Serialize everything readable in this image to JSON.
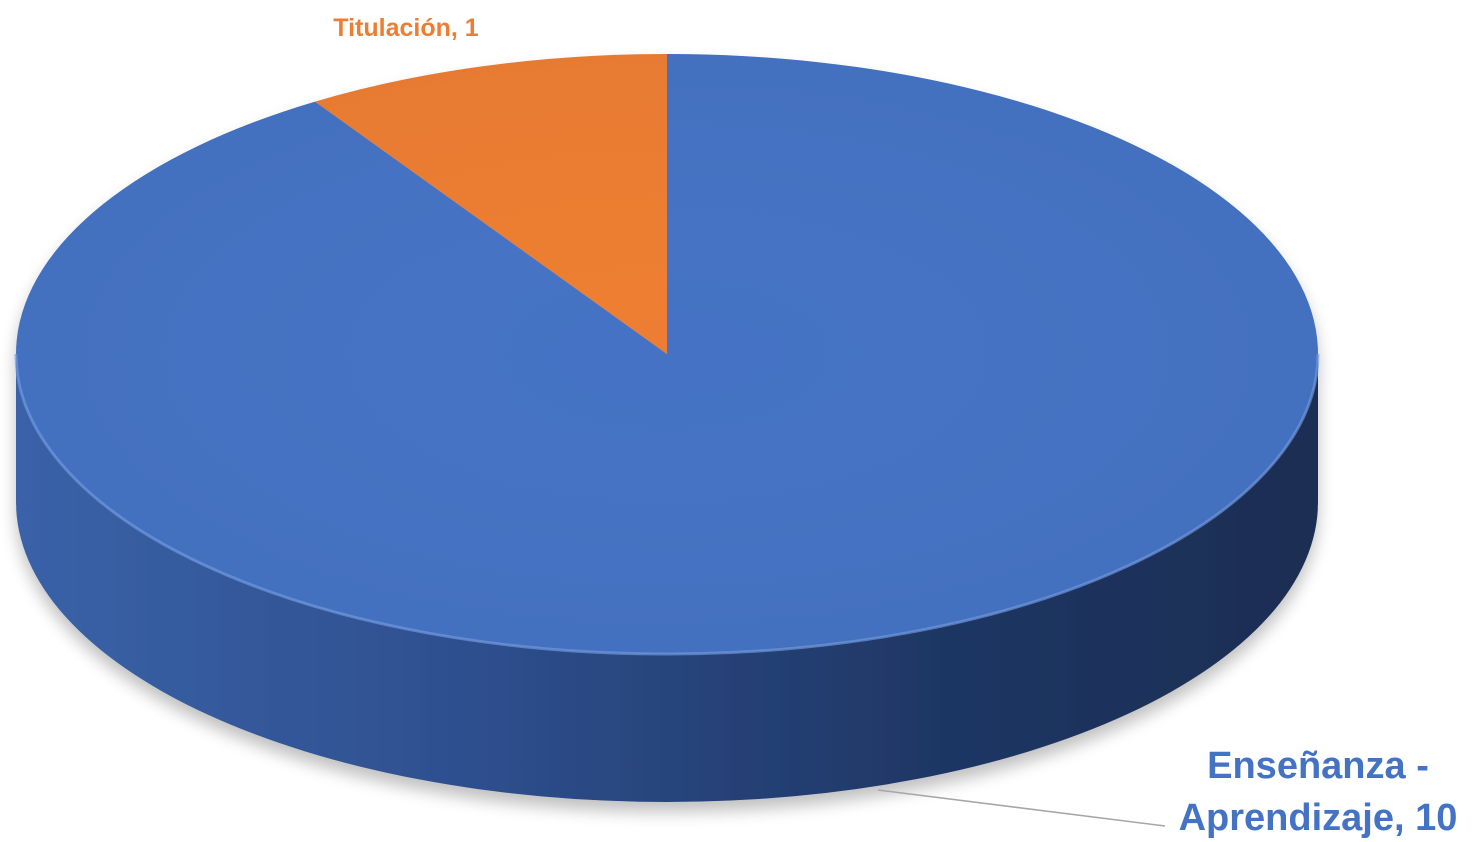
{
  "chart_data": {
    "type": "pie",
    "style": "3d",
    "categories": [
      "Enseñanza - Aprendizaje",
      "Titulación"
    ],
    "values": [
      10,
      1
    ],
    "colors": [
      "#4472C4",
      "#ED7D31"
    ],
    "labels": {
      "Enseñanza - Aprendizaje": [
        "Enseñanza -",
        "Aprendizaje, 10"
      ],
      "Titulación": [
        "Titulación, 1"
      ]
    },
    "legend": false,
    "title": ""
  }
}
